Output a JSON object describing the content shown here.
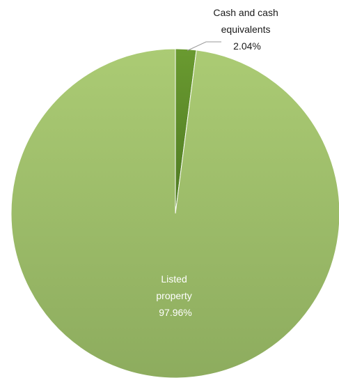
{
  "chart_data": {
    "type": "pie",
    "slices": [
      {
        "label_lines": [
          "Cash and cash",
          "equivalents"
        ],
        "value_label": "2.04%",
        "value": 2.04,
        "color": "#5b8a2a"
      },
      {
        "label_lines": [
          "Listed",
          "property"
        ],
        "value_label": "97.96%",
        "value": 97.96,
        "color": "#a6c66e"
      }
    ],
    "label_color_outside": "#1a1a1a",
    "label_color_inside": "#ffffff",
    "leader_line_color": "#9a9a9a"
  }
}
